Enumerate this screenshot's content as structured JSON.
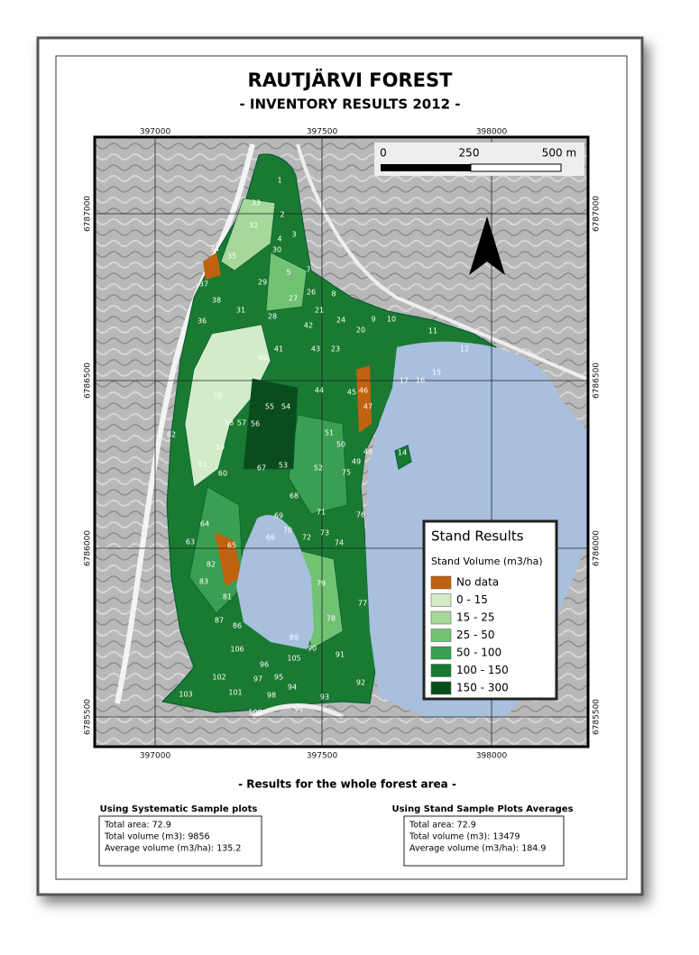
{
  "header": {
    "title": "RAUTJÄRVI FOREST",
    "subtitle": "- INVENTORY RESULTS 2012 -"
  },
  "map": {
    "x_labels": [
      "397000",
      "397500",
      "398000"
    ],
    "y_labels": [
      "6787000",
      "6786500",
      "6786000",
      "6785500"
    ],
    "scale_labels": [
      "0",
      "250",
      "500 m"
    ],
    "stands": [
      "1",
      "2",
      "3",
      "4",
      "5",
      "7",
      "8",
      "9",
      "10",
      "11",
      "12",
      "14",
      "15",
      "16",
      "17",
      "20",
      "21",
      "23",
      "24",
      "26",
      "27",
      "28",
      "29",
      "30",
      "31",
      "32",
      "33",
      "34",
      "35",
      "36",
      "37",
      "38",
      "39",
      "40",
      "41",
      "42",
      "43",
      "44",
      "45",
      "46",
      "47",
      "48",
      "49",
      "50",
      "51",
      "52",
      "53",
      "54",
      "55",
      "56",
      "57",
      "58",
      "59",
      "60",
      "61",
      "62",
      "63",
      "64",
      "65",
      "66",
      "67",
      "68",
      "69",
      "70",
      "71",
      "72",
      "73",
      "74",
      "75",
      "76",
      "77",
      "78",
      "79",
      "81",
      "82",
      "83",
      "86",
      "87",
      "89",
      "90",
      "91",
      "92",
      "93",
      "94",
      "95",
      "96",
      "97",
      "98",
      "99",
      "100",
      "101",
      "102",
      "103",
      "105",
      "106"
    ]
  },
  "legend": {
    "title": "Stand Results",
    "subtitle": "Stand Volume (m3/ha)",
    "items": [
      {
        "label": "No data",
        "color": "#c0620f"
      },
      {
        "label": "0 - 15",
        "color": "#d2ebc8"
      },
      {
        "label": "15 - 25",
        "color": "#a6d89a"
      },
      {
        "label": "25 - 50",
        "color": "#72c273"
      },
      {
        "label": "50 - 100",
        "color": "#3a9f52"
      },
      {
        "label": "100 - 150",
        "color": "#177a30"
      },
      {
        "label": "150 - 300",
        "color": "#0a4d1d"
      }
    ]
  },
  "results": {
    "title": "- Results for the whole forest area -",
    "left": {
      "heading": "Using Systematic Sample plots",
      "lines": [
        "Total area: 72.9",
        "Total volume (m3): 9856",
        "Average volume (m3/ha): 135.2"
      ]
    },
    "right": {
      "heading": "Using Stand Sample Plots Averages",
      "lines": [
        "Total area: 72.9",
        "Total volume (m3): 13479",
        "Average volume (m3/ha): 184.9"
      ]
    }
  }
}
